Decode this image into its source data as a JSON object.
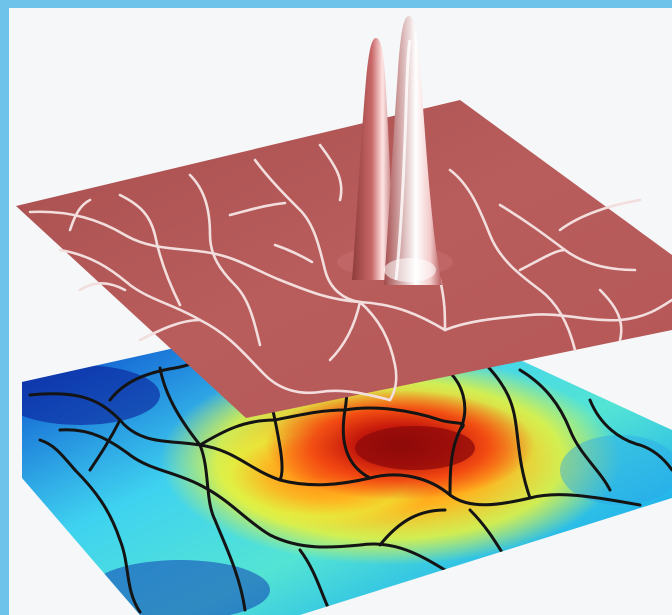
{
  "figure": {
    "border_color": "#6dc3ea",
    "background_color": "#f6f7f8",
    "upper_plane": {
      "surface_color": "#b65a5a",
      "boundary_color": "#f3dede",
      "peak_count": 2
    },
    "lower_plane": {
      "colormap": [
        "#0a1e9a",
        "#19b7ee",
        "#4fe0d6",
        "#eaf23a",
        "#ff9b1c",
        "#f03a10",
        "#8e0a0a"
      ],
      "boundary_color": "#141414"
    }
  }
}
